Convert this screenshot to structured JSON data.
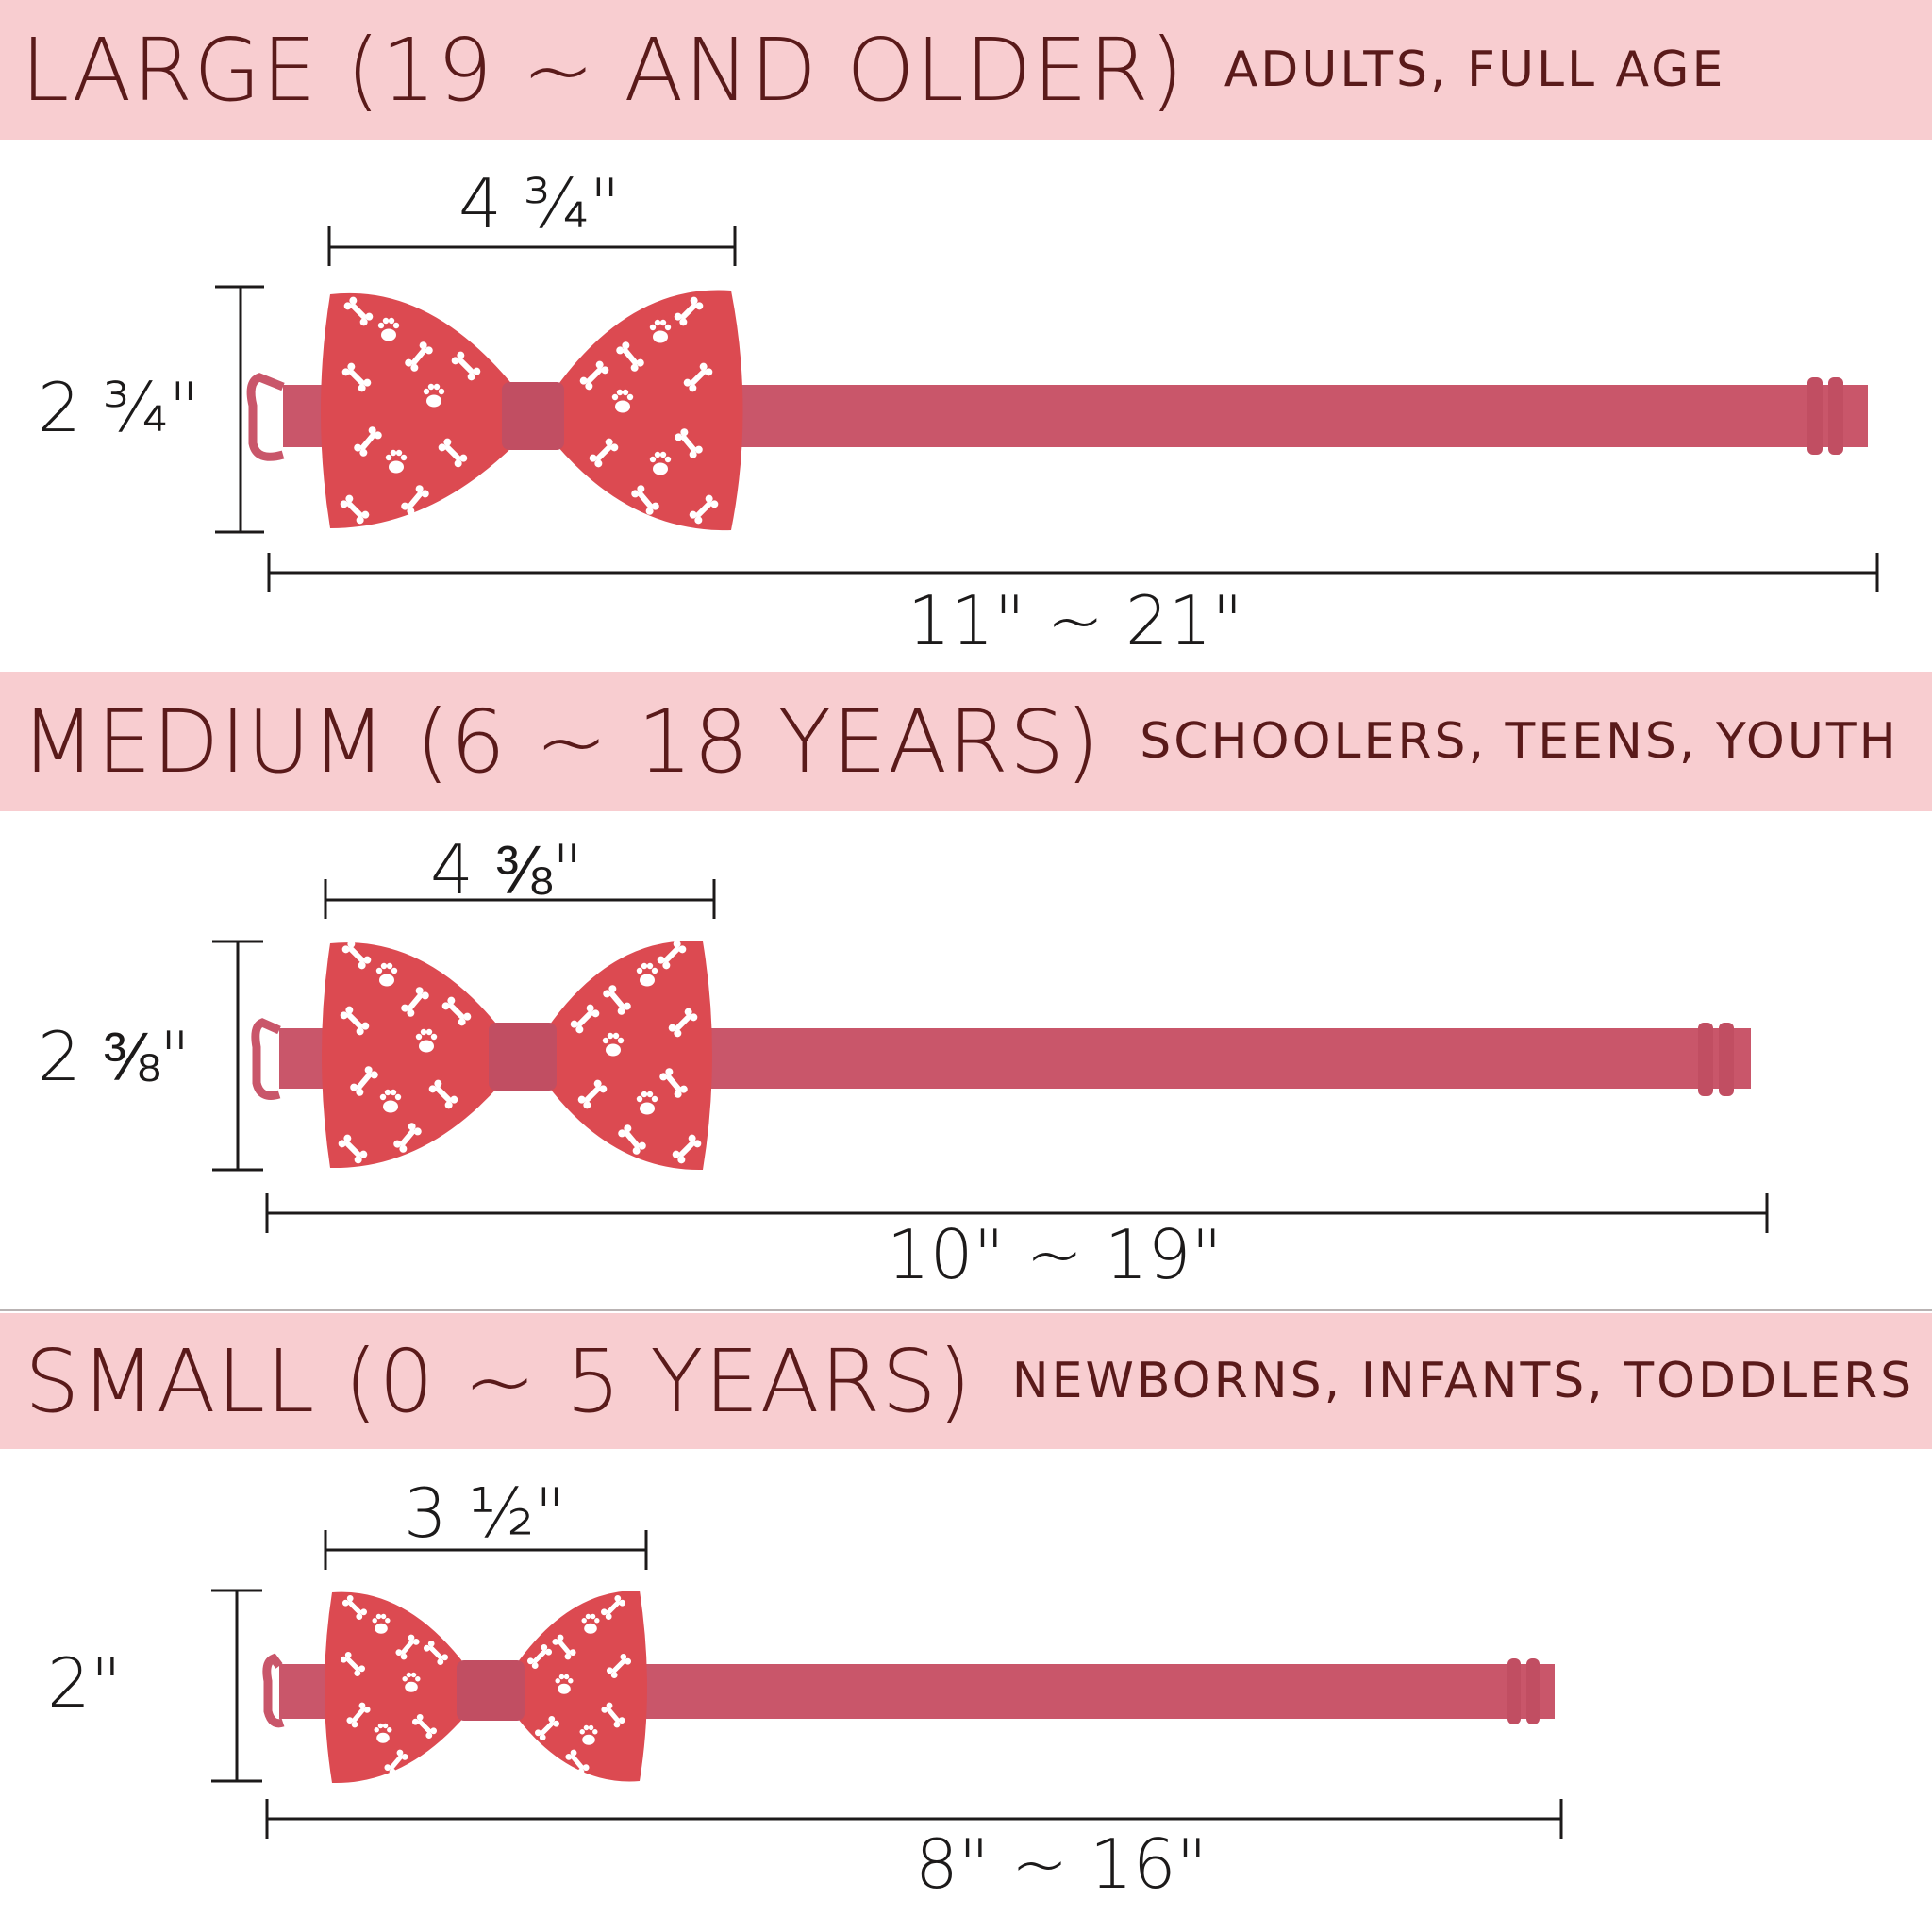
{
  "colors": {
    "band": "#f8cdd0",
    "band_text": "#5a1a1a",
    "bow": "#dc4a51",
    "strap": "#c9566a",
    "knot": "#c14e62",
    "pattern": "#ffffff"
  },
  "sections": [
    {
      "title": "LARGE (19 ~ AND OLDER)",
      "subtitle": "ADULTS, FULL AGE",
      "bow_width": "4 ¾\"",
      "bow_height": "2 ¾\"",
      "strap_length": "11\" ~ 21\""
    },
    {
      "title": "MEDIUM (6 ~ 18 YEARS)",
      "subtitle": "SCHOOLERS, TEENS, YOUTH",
      "bow_width": "4 ⅜\"",
      "bow_height": "2 ⅜\"",
      "strap_length": "10\" ~ 19\""
    },
    {
      "title": "SMALL (0 ~ 5 YEARS)",
      "subtitle": "NEWBORNS, INFANTS, TODDLERS",
      "bow_width": "3 ½\"",
      "bow_height": "2\"",
      "strap_length": "8\" ~ 16\""
    }
  ],
  "icons": [
    "bone-icon",
    "paw-icon",
    "hook-clasp-icon",
    "slider-buckle-icon"
  ]
}
